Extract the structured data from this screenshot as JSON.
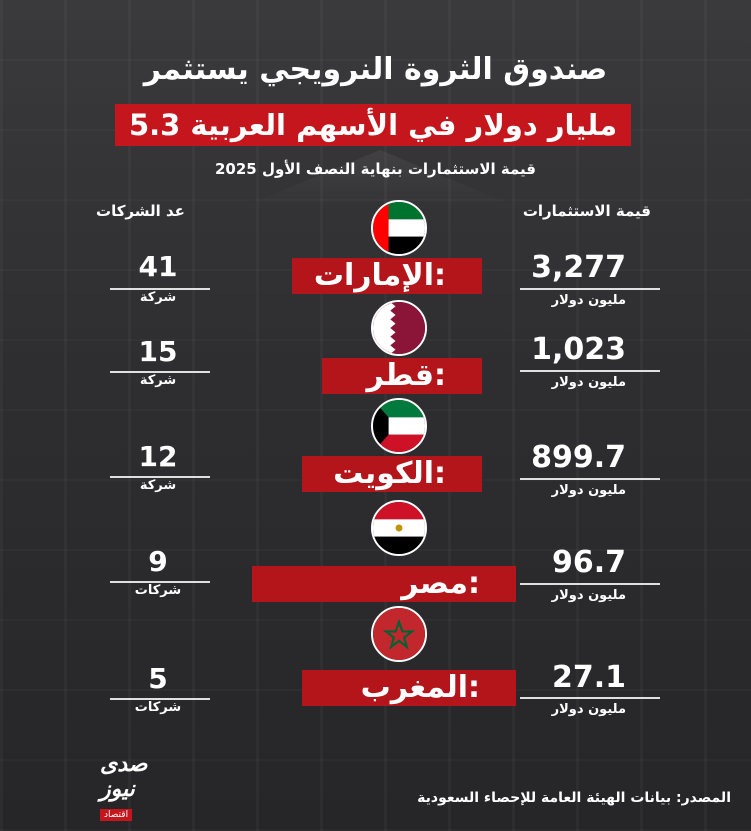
{
  "title_line1": "صندوق الثروة النرويجي يستثمر",
  "title_line2": "5.3 مليار دولار في الأسهم العربية",
  "subtitle": "قيمة الاستثمارات بنهاية النصف الأول 2025",
  "col_value_header": "قيمة الاستثمارات",
  "col_count_header": "عد الشركات",
  "countries": [
    {
      "name": "الإمارات:",
      "value": "3,277",
      "unit": "مليون دولار",
      "count": "41",
      "count_unit": "شركة",
      "flag": "uae-flag"
    },
    {
      "name": "قطر:",
      "value": "1,023",
      "unit": "مليون دولار",
      "count": "15",
      "count_unit": "شركة",
      "flag": "qatar-flag"
    },
    {
      "name": "الكويت:",
      "value": "899.7",
      "unit": "مليون دولار",
      "count": "12",
      "count_unit": "شركة",
      "flag": "kuwait-flag"
    },
    {
      "name": "مصر:",
      "value": "96.7",
      "unit": "مليون دولار",
      "count": "9",
      "count_unit": "شركات",
      "flag": "egypt-flag"
    },
    {
      "name": "المغرب:",
      "value": "27.1",
      "unit": "مليون دولار",
      "count": "5",
      "count_unit": "شركات",
      "flag": "morocco-flag"
    }
  ],
  "logo": {
    "word": "صدى نيوز",
    "tag": "اقتصاد"
  },
  "source": "المصدر: بيانات الهيئة العامة للإحصاء السعودية",
  "colors": {
    "accent_red": "#c4161c",
    "background": "#2b2b2d",
    "text": "#ffffff"
  }
}
